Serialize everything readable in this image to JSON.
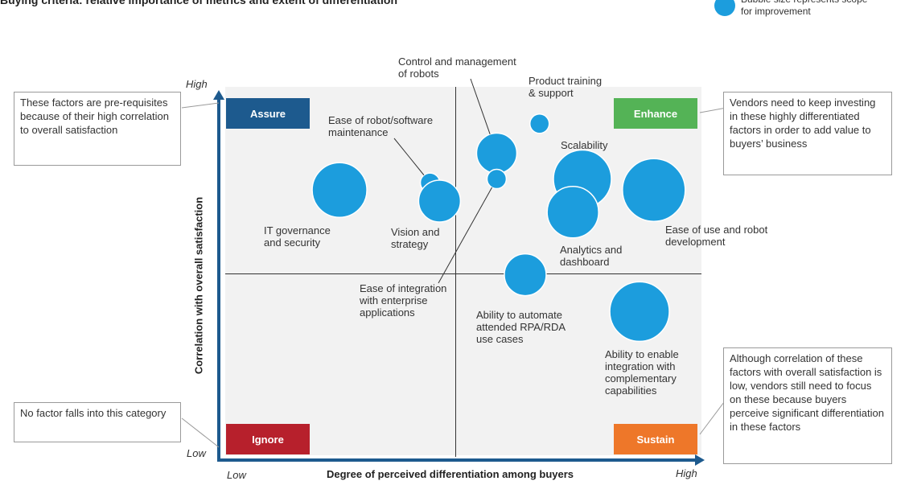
{
  "title": "Buying criteria: relative importance of metrics and extent of differentiation",
  "legend": {
    "text": "Bubble size represents scope for improvement",
    "color": "#1c9ddd"
  },
  "axis": {
    "y_title": "Correlation with overall satisfaction",
    "x_title": "Degree of perceived differentiation among buyers",
    "y_high": "High",
    "y_low": "Low",
    "x_low": "Low",
    "x_high": "High"
  },
  "quadrants": {
    "assure": {
      "label": "Assure",
      "color": "#1d5a8e"
    },
    "enhance": {
      "label": "Enhance",
      "color": "#54b356"
    },
    "ignore": {
      "label": "Ignore",
      "color": "#b7202c"
    },
    "sustain": {
      "label": "Sustain",
      "color": "#ee7729"
    }
  },
  "notes": {
    "assure": "These factors are pre-requisites because of their high correlation to overall satisfaction",
    "enhance": "Vendors need to keep investing in these highly differentiated factors in order to add value to buyers’ business",
    "ignore": "No factor falls into this category",
    "sustain": "Although correlation of these factors with overall satisfaction is low, vendors still need to focus on these because buyers perceive significant differentiation in these factors"
  },
  "chart_data": {
    "type": "scatter",
    "xlabel": "Degree of perceived differentiation among buyers",
    "ylabel": "Correlation with overall satisfaction",
    "xlim": [
      "Low",
      "High"
    ],
    "ylim": [
      "Low",
      "High"
    ],
    "bubble_color": "#1c9ddd",
    "points": [
      {
        "label": "IT governance and security",
        "x": 24,
        "y": 72,
        "size": 34
      },
      {
        "label": "Ease of robot/software maintenance",
        "x": 43,
        "y": 74,
        "size": 12
      },
      {
        "label": "Vision and strategy",
        "x": 45,
        "y": 69,
        "size": 26
      },
      {
        "label": "Control and management of robots",
        "x": 57,
        "y": 82,
        "size": 25
      },
      {
        "label": "Ease of integration with enterprise applications",
        "x": 57,
        "y": 75,
        "size": 12
      },
      {
        "label": "Product training & support",
        "x": 66,
        "y": 90,
        "size": 12
      },
      {
        "label": "Scalability",
        "x": 75,
        "y": 75,
        "size": 36
      },
      {
        "label": "Analytics and dashboard",
        "x": 73,
        "y": 66,
        "size": 32
      },
      {
        "label": "Ease of use and robot development",
        "x": 90,
        "y": 72,
        "size": 39
      },
      {
        "label": "Ability to automate attended RPA/RDA use cases",
        "x": 63,
        "y": 49,
        "size": 26
      },
      {
        "label": "Ability to enable integration with complementary capabilities",
        "x": 87,
        "y": 39,
        "size": 37
      }
    ]
  },
  "labels": {
    "it_gov": [
      "IT governance",
      "and security"
    ],
    "maint": [
      "Ease of robot/software",
      "maintenance"
    ],
    "vision": [
      "Vision and",
      "strategy"
    ],
    "control": [
      "Control and management",
      "of robots"
    ],
    "integ": [
      "Ease of integration",
      "with enterprise",
      "applications"
    ],
    "training": [
      "Product training",
      "& support"
    ],
    "scal": [
      "Scalability"
    ],
    "analytics": [
      "Analytics and",
      "dashboard"
    ],
    "ease_use": [
      "Ease of use and robot",
      "development"
    ],
    "attended": [
      "Ability to automate",
      "attended RPA/RDA",
      "use cases"
    ],
    "complementary": [
      "Ability to enable",
      "integration with",
      "complementary",
      "capabilities"
    ]
  }
}
